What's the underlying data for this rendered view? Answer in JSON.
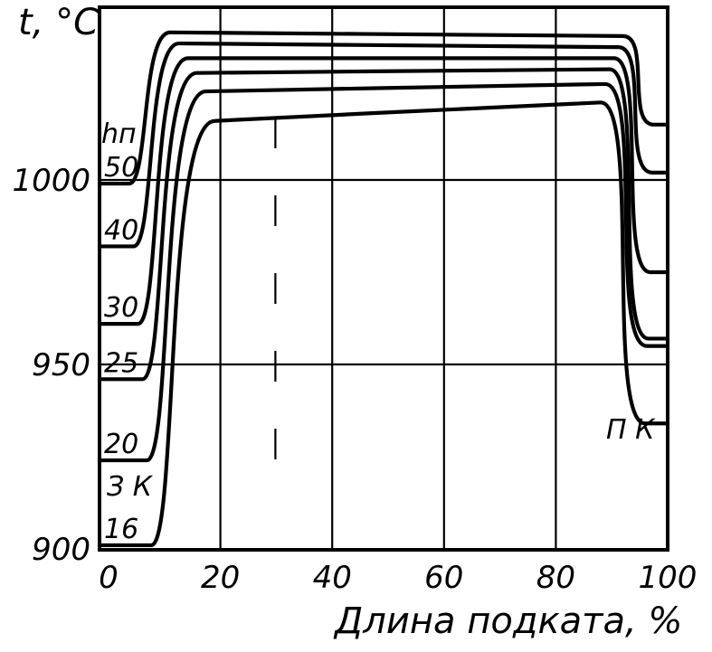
{
  "chart_data": {
    "type": "line",
    "ylabel": "t, °C",
    "xlabel": "Длина подката, %",
    "xlim": [
      0,
      100
    ],
    "ylim": [
      900,
      1050
    ],
    "x_ticks": [
      "0",
      "20",
      "40",
      "60",
      "80",
      "100"
    ],
    "y_ticks": [
      "900",
      "950",
      "1000"
    ],
    "y_tick_values": [
      900,
      950,
      1000
    ],
    "grid": true,
    "legend_title": "hп",
    "start_label": "З К",
    "end_label": "П К",
    "series": [
      {
        "name": "50",
        "start": 999,
        "plateau_start": 1040,
        "plateau_end": 1039,
        "end": 1015
      },
      {
        "name": "40",
        "start": 982,
        "plateau_start": 1037,
        "plateau_end": 1036,
        "end": 1002
      },
      {
        "name": "30",
        "start": 961,
        "plateau_start": 1033,
        "plateau_end": 1033,
        "end": 975
      },
      {
        "name": "25",
        "start": 946,
        "plateau_start": 1029,
        "plateau_end": 1030,
        "end": 957
      },
      {
        "name": "20",
        "start": 924,
        "plateau_start": 1024,
        "plateau_end": 1026,
        "end": 955
      },
      {
        "name": "16",
        "start": 901,
        "plateau_start": 1016,
        "plateau_end": 1021,
        "end": 934
      }
    ]
  }
}
